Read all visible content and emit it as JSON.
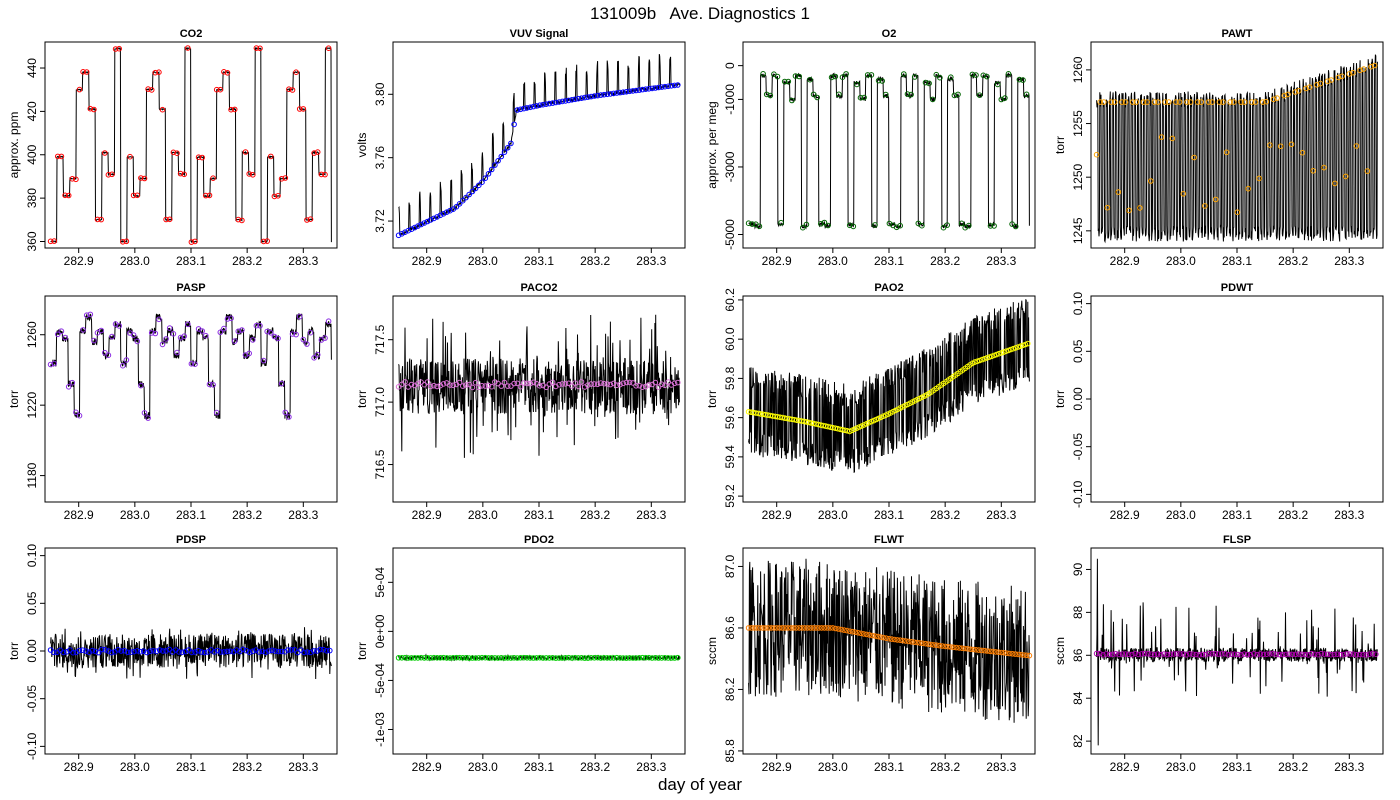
{
  "figure": {
    "title": "131009b   Ave. Diagnostics 1",
    "xlabel": "day of year"
  },
  "chart_data": [
    {
      "type": "line",
      "title": "CO2",
      "ylabel": "approx. ppm",
      "xlim": [
        282.84,
        283.36
      ],
      "ylim": [
        357,
        452
      ],
      "xticks": [
        "282.9",
        "283.0",
        "283.1",
        "283.2",
        "283.3"
      ],
      "yticks": [
        "360",
        "380",
        "400",
        "420",
        "440"
      ],
      "marker_color": "#ff0000",
      "series": [
        {
          "pattern": "step_cycle",
          "levels": [
            360,
            399,
            381,
            389,
            430,
            438,
            421,
            370,
            401,
            391,
            449
          ],
          "start": 282.85,
          "end": 283.35,
          "noise": 0.3
        }
      ]
    },
    {
      "type": "line",
      "title": "VUV Signal",
      "ylabel": "volts",
      "xlim": [
        282.84,
        283.36
      ],
      "ylim": [
        3.703,
        3.833
      ],
      "xticks": [
        "282.9",
        "283.0",
        "283.1",
        "283.2",
        "283.3"
      ],
      "yticks": [
        "3.72",
        "3.76",
        "3.80"
      ],
      "marker_color": "#0000ff",
      "series": [
        {
          "pattern": "vuv",
          "start": 282.85,
          "end": 283.35,
          "points": [
            [
              282.85,
              3.711
            ],
            [
              282.95,
              3.728
            ],
            [
              283.0,
              3.745
            ],
            [
              283.05,
              3.769
            ],
            [
              283.06,
              3.79
            ],
            [
              283.1,
              3.793
            ],
            [
              283.2,
              3.799
            ],
            [
              283.35,
              3.806
            ]
          ],
          "spike": 0.022
        }
      ]
    },
    {
      "type": "line",
      "title": "O2",
      "ylabel": "approx. per meg",
      "xlim": [
        282.84,
        283.36
      ],
      "ylim": [
        -5400,
        700
      ],
      "xticks": [
        "282.9",
        "283.0",
        "283.1",
        "283.2",
        "283.3"
      ],
      "yticks": [
        "-5000",
        "-3000",
        "-1000",
        "0"
      ],
      "marker_color": "#006400",
      "series": [
        {
          "pattern": "step_cycle",
          "levels": [
            -4700,
            -4750,
            -300,
            -900,
            -300,
            -4700,
            -500,
            -1000,
            -300,
            -4750,
            -400,
            -900
          ],
          "start": 282.85,
          "end": 283.35,
          "noise": 60
        }
      ]
    },
    {
      "type": "line",
      "title": "PAWT",
      "ylabel": "torr",
      "xlim": [
        282.84,
        283.36
      ],
      "ylim": [
        1243.4,
        1262.6
      ],
      "xticks": [
        "282.9",
        "283.0",
        "283.1",
        "283.2",
        "283.3"
      ],
      "yticks": [
        "1245",
        "1250",
        "1255",
        "1260"
      ],
      "marker_color": "#ffa500",
      "series": [
        {
          "pattern": "osc",
          "start": 282.85,
          "end": 283.35,
          "cycles": 90,
          "low": 1244.0,
          "high": 1258.0,
          "high_end": 1261.5
        }
      ]
    },
    {
      "type": "line",
      "title": "PASP",
      "ylabel": "torr",
      "xlim": [
        282.84,
        283.36
      ],
      "ylim": [
        1165,
        1282
      ],
      "xticks": [
        "282.9",
        "283.0",
        "283.1",
        "283.2",
        "283.3"
      ],
      "yticks": [
        "1180",
        "1220",
        "1260"
      ],
      "marker_color": "#8a2be2",
      "series": [
        {
          "pattern": "step_cycle",
          "levels": [
            1244,
            1262,
            1258,
            1232,
            1214,
            1262,
            1270,
            1256,
            1262,
            1248,
            1258,
            1266
          ],
          "start": 282.85,
          "end": 283.35,
          "noise": 2
        }
      ]
    },
    {
      "type": "line",
      "title": "PACO2",
      "ylabel": "torr",
      "xlim": [
        282.84,
        283.36
      ],
      "ylim": [
        716.2,
        717.85
      ],
      "xticks": [
        "282.9",
        "283.0",
        "283.1",
        "283.2",
        "283.3"
      ],
      "yticks": [
        "716.5",
        "717.0",
        "717.5"
      ],
      "marker_color": "#da70d6",
      "series": [
        {
          "pattern": "band",
          "start": 282.85,
          "end": 283.35,
          "mean": 717.14,
          "band": [
            716.9,
            717.35
          ],
          "spike": [
            716.55,
            717.7
          ]
        }
      ]
    },
    {
      "type": "line",
      "title": "PAO2",
      "ylabel": "torr",
      "xlim": [
        282.84,
        283.36
      ],
      "ylim": [
        59.17,
        60.22
      ],
      "xticks": [
        "282.9",
        "283.0",
        "283.1",
        "283.2",
        "283.3"
      ],
      "yticks": [
        "59.2",
        "59.4",
        "59.6",
        "59.8",
        "60.0",
        "60.2"
      ],
      "marker_color": "#ffff00",
      "series": [
        {
          "pattern": "pao2",
          "start": 282.85,
          "end": 283.35,
          "points": [
            [
              282.85,
              59.63
            ],
            [
              282.95,
              59.58
            ],
            [
              283.03,
              59.53
            ],
            [
              283.1,
              59.62
            ],
            [
              283.17,
              59.72
            ],
            [
              283.25,
              59.88
            ],
            [
              283.35,
              59.98
            ]
          ]
        }
      ]
    },
    {
      "type": "line",
      "title": "PDWT",
      "ylabel": "torr",
      "xlim": [
        282.84,
        283.36
      ],
      "ylim": [
        -0.108,
        0.108
      ],
      "xticks": [
        "282.9",
        "283.0",
        "283.1",
        "283.2",
        "283.3"
      ],
      "yticks": [
        "-0.10",
        "-0.05",
        "0.00",
        "0.05",
        "0.10"
      ],
      "series": []
    },
    {
      "type": "line",
      "title": "PDSP",
      "ylabel": "torr",
      "xlim": [
        282.84,
        283.36
      ],
      "ylim": [
        -0.108,
        0.108
      ],
      "xticks": [
        "282.9",
        "283.0",
        "283.1",
        "283.2",
        "283.3"
      ],
      "yticks": [
        "-0.10",
        "-0.05",
        "0.00",
        "0.05",
        "0.10"
      ],
      "marker_color": "#0000ff",
      "series": [
        {
          "pattern": "band",
          "start": 282.85,
          "end": 283.35,
          "mean": 0.0,
          "band": [
            -0.018,
            0.018
          ],
          "spike": [
            -0.03,
            0.025
          ]
        }
      ]
    },
    {
      "type": "line",
      "title": "PDO2",
      "ylabel": "torr",
      "xlim": [
        282.84,
        283.36
      ],
      "ylim": [
        -0.00125,
        0.00085
      ],
      "xticks": [
        "282.9",
        "283.0",
        "283.1",
        "283.2",
        "283.3"
      ],
      "yticks": [
        "-1e-03",
        "-5e-04",
        "0e+00",
        "5e-04"
      ],
      "marker_color": "#00cc00",
      "series": [
        {
          "pattern": "band",
          "start": 282.85,
          "end": 283.35,
          "mean": -0.00027,
          "band": [
            -0.00029,
            -0.00025
          ],
          "spike": [
            -0.0003,
            -0.00024
          ]
        }
      ]
    },
    {
      "type": "line",
      "title": "FLWT",
      "ylabel": "sccm",
      "xlim": [
        282.84,
        283.36
      ],
      "ylim": [
        85.78,
        87.12
      ],
      "xticks": [
        "282.9",
        "283.0",
        "283.1",
        "283.2",
        "283.3"
      ],
      "yticks": [
        "85.8",
        "86.2",
        "86.6",
        "87.0"
      ],
      "marker_color": "#ff7f00",
      "series": [
        {
          "pattern": "flwt",
          "start": 282.85,
          "end": 283.35,
          "points": [
            [
              282.85,
              86.6
            ],
            [
              283.0,
              86.6
            ],
            [
              283.1,
              86.53
            ],
            [
              283.2,
              86.48
            ],
            [
              283.35,
              86.42
            ]
          ]
        }
      ]
    },
    {
      "type": "line",
      "title": "FLSP",
      "ylabel": "sccm",
      "xlim": [
        282.84,
        283.36
      ],
      "ylim": [
        81.4,
        91.0
      ],
      "xticks": [
        "282.9",
        "283.0",
        "283.1",
        "283.2",
        "283.3"
      ],
      "yticks": [
        "82",
        "84",
        "86",
        "88",
        "90"
      ],
      "marker_color": "#b000b0",
      "series": [
        {
          "pattern": "band",
          "start": 282.85,
          "end": 283.35,
          "mean": 86.05,
          "band": [
            85.7,
            86.35
          ],
          "spike": [
            84.0,
            88.5
          ],
          "max": 90.5,
          "min": 81.8
        }
      ]
    }
  ]
}
